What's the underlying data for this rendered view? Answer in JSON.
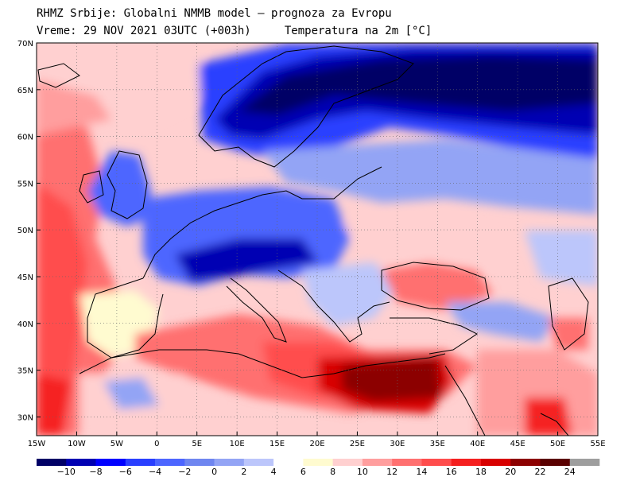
{
  "header": {
    "line1": "RHMZ Srbije: Globalni NMMB model — prognoza za Evropu",
    "line2": "Vreme: 29 NOV 2021 03UTC (+003h)     Temperatura na 2m [°C]"
  },
  "map": {
    "lon_range": [
      -15,
      55
    ],
    "lat_range": [
      28,
      70
    ],
    "lon_ticks": [
      "15W",
      "10W",
      "5W",
      "0",
      "5E",
      "10E",
      "15E",
      "20E",
      "25E",
      "30E",
      "35E",
      "40E",
      "45E",
      "50E",
      "55E"
    ],
    "lat_ticks": [
      "70N",
      "65N",
      "60N",
      "55N",
      "50N",
      "45N",
      "40N",
      "35N",
      "30N"
    ]
  },
  "colorbar": {
    "labels": [
      "−10",
      "−8",
      "−6",
      "−4",
      "−2",
      "0",
      "2",
      "4",
      "6",
      "8",
      "10",
      "12",
      "14",
      "16",
      "18",
      "20",
      "22",
      "24"
    ],
    "colors": [
      "#000066",
      "#0000b3",
      "#0000ff",
      "#2a3fff",
      "#4d66ff",
      "#6f86f0",
      "#93a4f5",
      "#bcc6fb",
      "#ffffff",
      "#fffbd0",
      "#ffd0d0",
      "#ff9e9e",
      "#ff7070",
      "#ff4d4d",
      "#f52020",
      "#d80000",
      "#8c0000",
      "#5a0000",
      "#9e9e9e"
    ]
  }
}
